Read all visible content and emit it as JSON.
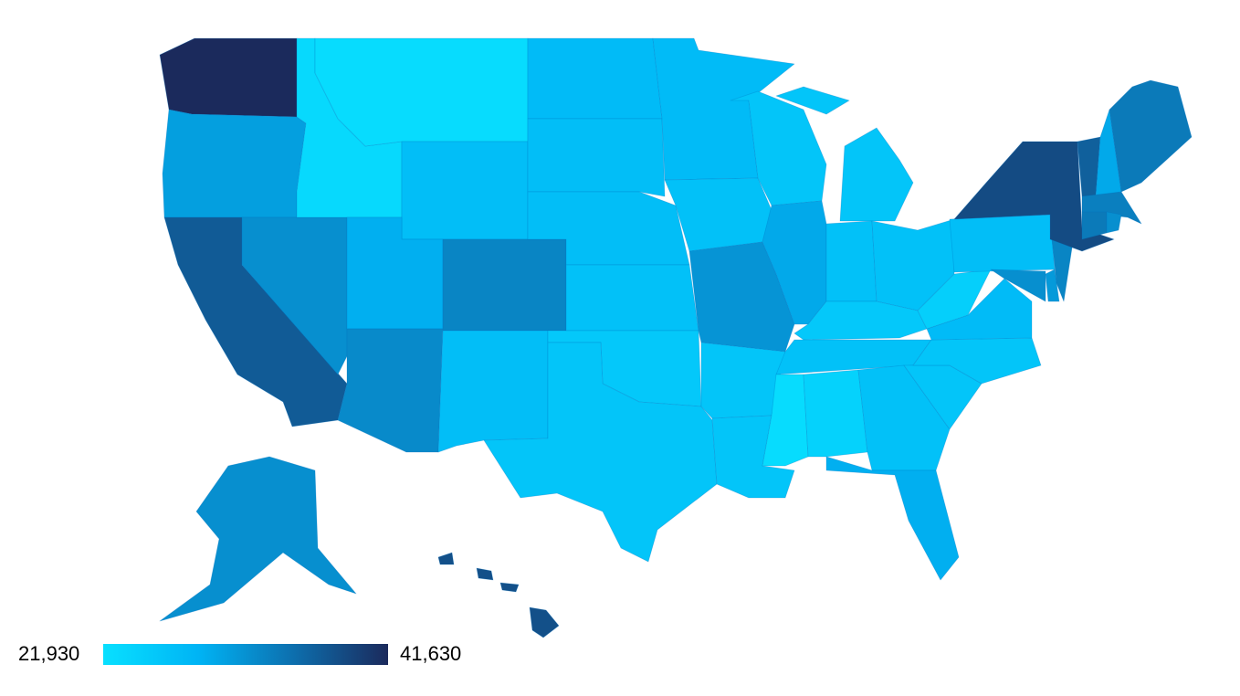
{
  "chart_data": {
    "type": "choropleth",
    "values": [
      41630,
      30500,
      37000,
      32000,
      23000,
      22500,
      27000,
      29000,
      32500,
      33000,
      27000,
      27500,
      27000,
      27000,
      26500,
      25500,
      26000,
      27500,
      26500,
      31500,
      26000,
      26000,
      26000,
      29500,
      26000,
      26500,
      26500,
      25500,
      26500,
      22500,
      24000,
      26500,
      29000,
      26000,
      26000,
      27500,
      24500,
      27000,
      32000,
      31000,
      33000,
      38500,
      36500,
      29500,
      34000,
      33500,
      34000,
      32000,
      32000,
      38000
    ],
    "colorscale": [
      "#08e0ff",
      "#00b4f5",
      "#0d6fae",
      "#1b2a5c"
    ],
    "legend": {
      "min": {
        "value": 21930,
        "label": "21,930"
      },
      "max": {
        "value": 41630,
        "label": "41,630"
      }
    }
  }
}
